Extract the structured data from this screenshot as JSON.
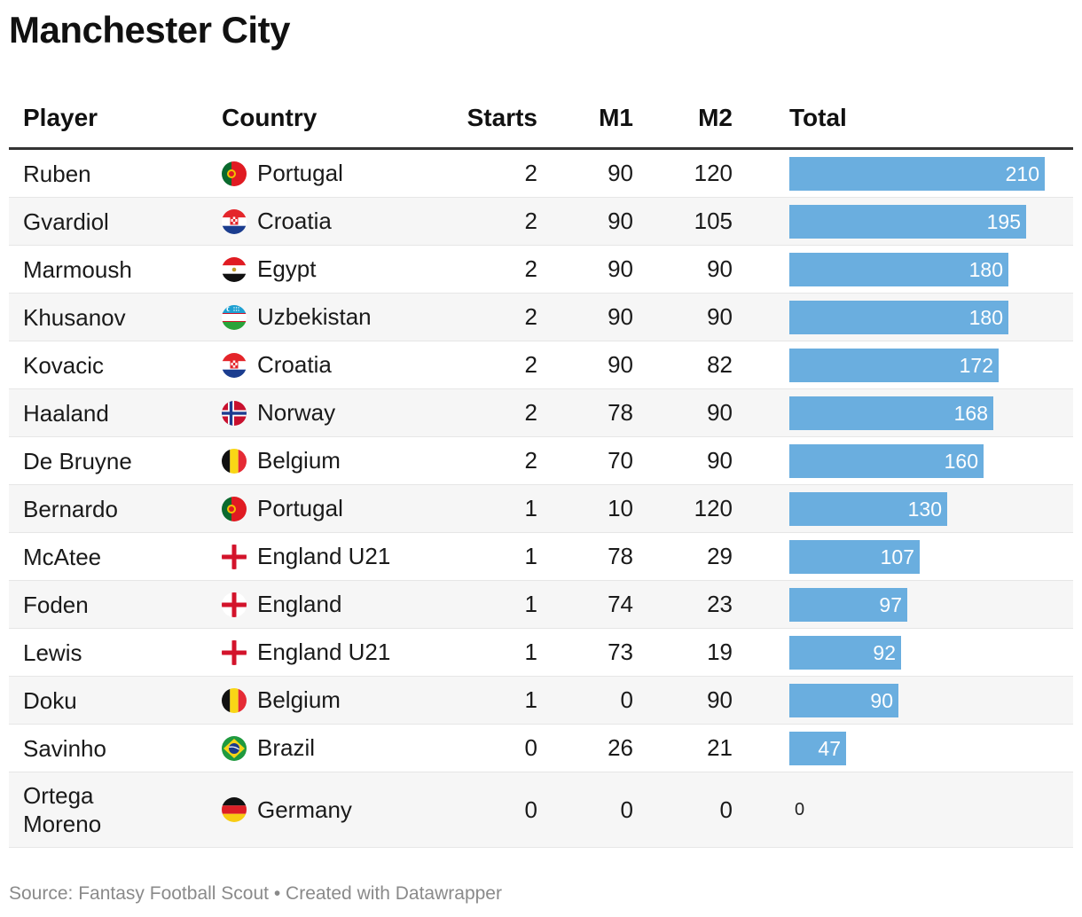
{
  "title": "Manchester City",
  "footer": {
    "source": "Source: Fantasy Football Scout",
    "separator": " • ",
    "credit": "Created with Datawrapper"
  },
  "chart_data": {
    "type": "table",
    "title": "Manchester City",
    "columns": [
      "Player",
      "Country",
      "Starts",
      "M1",
      "M2",
      "Total"
    ],
    "bar_color": "#6aaedf",
    "bar_max": 210,
    "rows": [
      {
        "player": "Ruben",
        "country": "Portugal",
        "flag": "portugal-flag-icon",
        "starts": "2",
        "m1": "90",
        "m2": "120",
        "total": 210
      },
      {
        "player": "Gvardiol",
        "country": "Croatia",
        "flag": "croatia-flag-icon",
        "starts": "2",
        "m1": "90",
        "m2": "105",
        "total": 195
      },
      {
        "player": "Marmoush",
        "country": "Egypt",
        "flag": "egypt-flag-icon",
        "starts": "2",
        "m1": "90",
        "m2": "90",
        "total": 180
      },
      {
        "player": "Khusanov",
        "country": "Uzbekistan",
        "flag": "uzbekistan-flag-icon",
        "starts": "2",
        "m1": "90",
        "m2": "90",
        "total": 180
      },
      {
        "player": "Kovacic",
        "country": "Croatia",
        "flag": "croatia-flag-icon",
        "starts": "2",
        "m1": "90",
        "m2": "82",
        "total": 172
      },
      {
        "player": "Haaland",
        "country": "Norway",
        "flag": "norway-flag-icon",
        "starts": "2",
        "m1": "78",
        "m2": "90",
        "total": 168
      },
      {
        "player": "De Bruyne",
        "country": "Belgium",
        "flag": "belgium-flag-icon",
        "starts": "2",
        "m1": "70",
        "m2": "90",
        "total": 160
      },
      {
        "player": "Bernardo",
        "country": "Portugal",
        "flag": "portugal-flag-icon",
        "starts": "1",
        "m1": "10",
        "m2": "120",
        "total": 130
      },
      {
        "player": "McAtee",
        "country": "England U21",
        "flag": "england-flag-icon",
        "starts": "1",
        "m1": "78",
        "m2": "29",
        "total": 107
      },
      {
        "player": "Foden",
        "country": "England",
        "flag": "england-flag-icon",
        "starts": "1",
        "m1": "74",
        "m2": "23",
        "total": 97
      },
      {
        "player": "Lewis",
        "country": "England U21",
        "flag": "england-flag-icon",
        "starts": "1",
        "m1": "73",
        "m2": "19",
        "total": 92
      },
      {
        "player": "Doku",
        "country": "Belgium",
        "flag": "belgium-flag-icon",
        "starts": "1",
        "m1": "0",
        "m2": "90",
        "total": 90
      },
      {
        "player": "Savinho",
        "country": "Brazil",
        "flag": "brazil-flag-icon",
        "starts": "0",
        "m1": "26",
        "m2": "21",
        "total": 47
      },
      {
        "player": "Ortega Moreno",
        "country": "Germany",
        "flag": "germany-flag-icon",
        "starts": "0",
        "m1": "0",
        "m2": "0",
        "total": 0
      }
    ]
  }
}
